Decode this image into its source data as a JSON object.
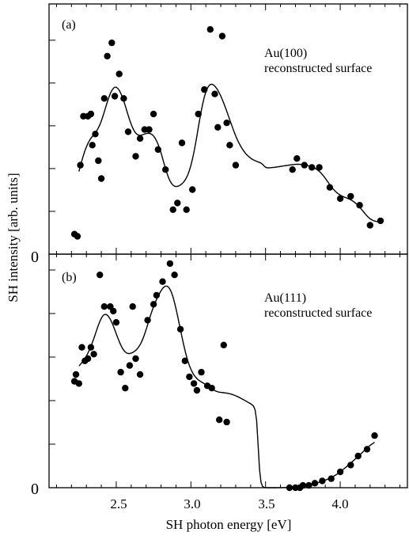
{
  "chart_data": [
    {
      "type": "scatter",
      "panel_label": "(a)",
      "annotation_line1": "Au(100)",
      "annotation_line2": "reconstructed surface",
      "xlim": [
        2.05,
        4.45
      ],
      "ylim": [
        0,
        1.0
      ],
      "y_zero_label": "0",
      "fit_curve": true,
      "points": [
        [
          2.22,
          0.09
        ],
        [
          2.24,
          0.08
        ],
        [
          2.26,
          0.4
        ],
        [
          2.28,
          0.62
        ],
        [
          2.31,
          0.62
        ],
        [
          2.33,
          0.63
        ],
        [
          2.34,
          0.49
        ],
        [
          2.36,
          0.54
        ],
        [
          2.38,
          0.42
        ],
        [
          2.4,
          0.34
        ],
        [
          2.42,
          0.7
        ],
        [
          2.44,
          0.89
        ],
        [
          2.47,
          0.95
        ],
        [
          2.49,
          0.71
        ],
        [
          2.52,
          0.81
        ],
        [
          2.55,
          0.7
        ],
        [
          2.58,
          0.55
        ],
        [
          2.63,
          0.44
        ],
        [
          2.66,
          0.52
        ],
        [
          2.69,
          0.56
        ],
        [
          2.72,
          0.56
        ],
        [
          2.75,
          0.63
        ],
        [
          2.78,
          0.47
        ],
        [
          2.83,
          0.38
        ],
        [
          2.88,
          0.2
        ],
        [
          2.91,
          0.23
        ],
        [
          2.94,
          0.5
        ],
        [
          2.97,
          0.2
        ],
        [
          3.01,
          0.29
        ],
        [
          3.05,
          0.63
        ],
        [
          3.09,
          0.74
        ],
        [
          3.13,
          1.01
        ],
        [
          3.16,
          0.72
        ],
        [
          3.18,
          0.57
        ],
        [
          3.21,
          0.98
        ],
        [
          3.24,
          0.59
        ],
        [
          3.26,
          0.49
        ],
        [
          3.3,
          0.4
        ],
        [
          3.68,
          0.38
        ],
        [
          3.71,
          0.43
        ],
        [
          3.76,
          0.4
        ],
        [
          3.81,
          0.39
        ],
        [
          3.86,
          0.39
        ],
        [
          3.93,
          0.3
        ],
        [
          4.0,
          0.25
        ],
        [
          4.07,
          0.26
        ],
        [
          4.13,
          0.22
        ],
        [
          4.2,
          0.13
        ],
        [
          4.27,
          0.15
        ]
      ]
    },
    {
      "type": "scatter",
      "panel_label": "(b)",
      "annotation_line1": "Au(111)",
      "annotation_line2": "reconstructed surface",
      "xlim": [
        2.05,
        4.45
      ],
      "ylim": [
        0,
        1.0
      ],
      "y_zero_label": "0",
      "fit_curve": true,
      "points": [
        [
          2.22,
          0.47
        ],
        [
          2.23,
          0.5
        ],
        [
          2.25,
          0.46
        ],
        [
          2.27,
          0.62
        ],
        [
          2.29,
          0.56
        ],
        [
          2.31,
          0.57
        ],
        [
          2.33,
          0.62
        ],
        [
          2.35,
          0.59
        ],
        [
          2.39,
          0.94
        ],
        [
          2.42,
          0.8
        ],
        [
          2.46,
          0.8
        ],
        [
          2.48,
          0.78
        ],
        [
          2.5,
          0.73
        ],
        [
          2.53,
          0.51
        ],
        [
          2.56,
          0.44
        ],
        [
          2.59,
          0.54
        ],
        [
          2.61,
          0.8
        ],
        [
          2.63,
          0.57
        ],
        [
          2.66,
          0.5
        ],
        [
          2.71,
          0.74
        ],
        [
          2.75,
          0.81
        ],
        [
          2.77,
          0.85
        ],
        [
          2.81,
          0.91
        ],
        [
          2.86,
          0.99
        ],
        [
          2.89,
          0.94
        ],
        [
          2.93,
          0.7
        ],
        [
          2.96,
          0.56
        ],
        [
          2.99,
          0.49
        ],
        [
          3.02,
          0.46
        ],
        [
          3.04,
          0.43
        ],
        [
          3.07,
          0.51
        ],
        [
          3.11,
          0.45
        ],
        [
          3.14,
          0.44
        ],
        [
          3.19,
          0.3
        ],
        [
          3.22,
          0.63
        ],
        [
          3.24,
          0.29
        ],
        [
          3.66,
          0.0
        ],
        [
          3.7,
          0.0
        ],
        [
          3.73,
          0.0
        ],
        [
          3.75,
          0.01
        ],
        [
          3.79,
          0.01
        ],
        [
          3.83,
          0.02
        ],
        [
          3.88,
          0.03
        ],
        [
          3.94,
          0.04
        ],
        [
          4.0,
          0.07
        ],
        [
          4.07,
          0.1
        ],
        [
          4.12,
          0.14
        ],
        [
          4.18,
          0.17
        ],
        [
          4.23,
          0.23
        ]
      ]
    }
  ],
  "axes": {
    "xlabel": "SH photon energy [eV]",
    "ylabel": "SH intensity [arb. units]",
    "x_ticks": [
      "2.5",
      "3.0",
      "3.5",
      "4.0"
    ],
    "x_tick_values": [
      2.5,
      3.0,
      3.5,
      4.0
    ]
  }
}
